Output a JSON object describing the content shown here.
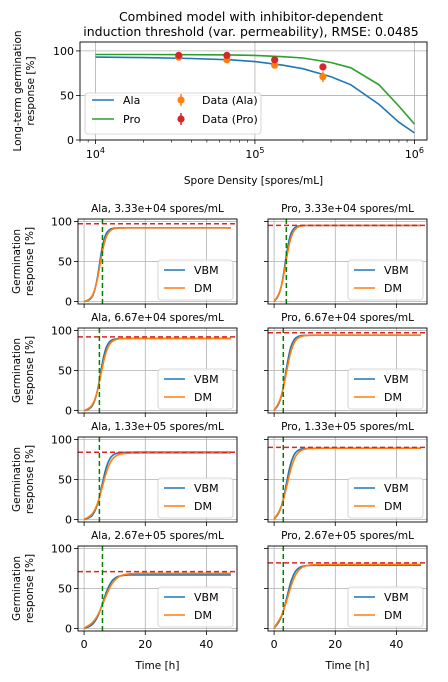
{
  "colors": {
    "ala": "#1f77b4",
    "pro": "#2ca02c",
    "data_ala": "#ff7f0e",
    "data_pro": "#d62728",
    "vbm": "#1f77b4",
    "dm": "#ff7f0e",
    "asymptote": "#d62728",
    "threshold": "#008000",
    "grid": "#b0b0b0"
  },
  "chart_data": [
    {
      "type": "line",
      "title_line1": "Combined model with inhibitor-dependent",
      "title_line2": "induction threshold (var. permeability), RMSE: 0.0485",
      "xlabel": "Spore Density [spores/mL]",
      "ylabel_line1": "Long-term germination",
      "ylabel_line2": "response [%]",
      "xscale": "log",
      "xlim": [
        8000,
        1200000
      ],
      "ylim": [
        0,
        110
      ],
      "xtick_labels": [
        "10^4",
        "10^5",
        "10^6"
      ],
      "xtick_values": [
        10000,
        100000,
        1000000
      ],
      "yticks": [
        0,
        50,
        100
      ],
      "grid": true,
      "legend_position": "lower-left",
      "series": [
        {
          "name": "Ala",
          "kind": "line",
          "x": [
            10000,
            20000,
            40000,
            70000,
            100000,
            150000,
            200000,
            300000,
            400000,
            600000,
            800000,
            1000000
          ],
          "y": [
            93,
            92.5,
            91.5,
            90,
            88,
            84,
            80,
            71,
            62,
            40,
            20,
            8
          ]
        },
        {
          "name": "Pro",
          "kind": "line",
          "x": [
            10000,
            20000,
            40000,
            70000,
            100000,
            150000,
            200000,
            300000,
            400000,
            600000,
            800000,
            1000000
          ],
          "y": [
            96,
            96,
            95.8,
            95.5,
            95,
            93.5,
            92,
            87,
            81,
            62,
            38,
            18
          ]
        },
        {
          "name": "Data (Ala)",
          "kind": "errorbar",
          "x": [
            33300,
            66700,
            133000,
            267000
          ],
          "y": [
            93,
            90,
            84,
            71
          ],
          "err": [
            2,
            2,
            3,
            6
          ]
        },
        {
          "name": "Data (Pro)",
          "kind": "errorbar",
          "x": [
            33300,
            66700,
            133000,
            267000
          ],
          "y": [
            95,
            95,
            90,
            82
          ],
          "err": [
            2,
            2,
            2,
            4
          ]
        }
      ]
    },
    {
      "type": "line",
      "title": "Ala, 3.33e+04 spores/mL",
      "xlim": [
        -2,
        50
      ],
      "ylim": [
        -3,
        103
      ],
      "yticks": [
        0,
        50,
        100
      ],
      "xticks": [
        0,
        20,
        40
      ],
      "ylabel_line1": "Germination",
      "ylabel_line2": "response [%]",
      "asymptote": 97,
      "threshold_time": 6,
      "vbm_params": {
        "final": 92,
        "half_time": 5.0,
        "rate": 1.1
      },
      "dm_params": {
        "final": 92,
        "half_time": 5.2,
        "rate": 0.95
      },
      "legend_position": "lower-right",
      "series": [
        {
          "name": "VBM"
        },
        {
          "name": "DM"
        }
      ]
    },
    {
      "type": "line",
      "title": "Pro, 3.33e+04 spores/mL",
      "xlim": [
        -2,
        50
      ],
      "ylim": [
        -3,
        103
      ],
      "yticks": [
        0,
        50,
        100
      ],
      "xticks": [
        0,
        20,
        40
      ],
      "asymptote": 95,
      "threshold_time": 4,
      "vbm_params": {
        "final": 95,
        "half_time": 3.6,
        "rate": 1.1
      },
      "dm_params": {
        "final": 95,
        "half_time": 3.8,
        "rate": 0.95
      },
      "legend_position": "lower-right",
      "series": [
        {
          "name": "VBM"
        },
        {
          "name": "DM"
        }
      ]
    },
    {
      "type": "line",
      "title": "Ala, 6.67e+04 spores/mL",
      "xlim": [
        -2,
        50
      ],
      "ylim": [
        -3,
        103
      ],
      "yticks": [
        0,
        50,
        100
      ],
      "xticks": [
        0,
        20,
        40
      ],
      "ylabel_line1": "Germination",
      "ylabel_line2": "response [%]",
      "asymptote": 92,
      "threshold_time": 5,
      "vbm_params": {
        "final": 90,
        "half_time": 5.3,
        "rate": 1.0
      },
      "dm_params": {
        "final": 90,
        "half_time": 5.5,
        "rate": 0.85
      },
      "legend_position": "lower-right",
      "series": [
        {
          "name": "VBM"
        },
        {
          "name": "DM"
        }
      ]
    },
    {
      "type": "line",
      "title": "Pro, 6.67e+04 spores/mL",
      "xlim": [
        -2,
        50
      ],
      "ylim": [
        -3,
        103
      ],
      "yticks": [
        0,
        50,
        100
      ],
      "xticks": [
        0,
        20,
        40
      ],
      "asymptote": 97,
      "threshold_time": 3,
      "vbm_params": {
        "final": 94,
        "half_time": 3.8,
        "rate": 1.0
      },
      "dm_params": {
        "final": 94,
        "half_time": 4.0,
        "rate": 0.85
      },
      "legend_position": "lower-right",
      "series": [
        {
          "name": "VBM"
        },
        {
          "name": "DM"
        }
      ]
    },
    {
      "type": "line",
      "title": "Ala, 1.33e+05 spores/mL",
      "xlim": [
        -2,
        50
      ],
      "ylim": [
        -3,
        103
      ],
      "yticks": [
        0,
        50,
        100
      ],
      "xticks": [
        0,
        20,
        40
      ],
      "ylabel_line1": "Germination",
      "ylabel_line2": "response [%]",
      "asymptote": 84,
      "threshold_time": 5,
      "vbm_params": {
        "final": 84,
        "half_time": 5.8,
        "rate": 0.85
      },
      "dm_params": {
        "final": 83,
        "half_time": 6.0,
        "rate": 0.7
      },
      "legend_position": "lower-right",
      "series": [
        {
          "name": "VBM"
        },
        {
          "name": "DM"
        }
      ]
    },
    {
      "type": "line",
      "title": "Pro, 1.33e+05 spores/mL",
      "xlim": [
        -2,
        50
      ],
      "ylim": [
        -3,
        103
      ],
      "yticks": [
        0,
        50,
        100
      ],
      "xticks": [
        0,
        20,
        40
      ],
      "asymptote": 90,
      "threshold_time": 3,
      "vbm_params": {
        "final": 89,
        "half_time": 4.0,
        "rate": 0.9
      },
      "dm_params": {
        "final": 89,
        "half_time": 4.3,
        "rate": 0.75
      },
      "legend_position": "lower-right",
      "series": [
        {
          "name": "VBM"
        },
        {
          "name": "DM"
        }
      ]
    },
    {
      "type": "line",
      "title": "Ala, 2.67e+05 spores/mL",
      "xlim": [
        -2,
        50
      ],
      "ylim": [
        -3,
        103
      ],
      "yticks": [
        0,
        50,
        100
      ],
      "xticks": [
        0,
        20,
        40
      ],
      "ylabel_line1": "Germination",
      "ylabel_line2": "response [%]",
      "xlabel": "Time [h]",
      "asymptote": 71,
      "threshold_time": 6,
      "vbm_params": {
        "final": 67,
        "half_time": 6.2,
        "rate": 0.7
      },
      "dm_params": {
        "final": 69,
        "half_time": 6.5,
        "rate": 0.55
      },
      "legend_position": "lower-right",
      "series": [
        {
          "name": "VBM"
        },
        {
          "name": "DM"
        }
      ]
    },
    {
      "type": "line",
      "title": "Pro, 2.67e+05 spores/mL",
      "xlim": [
        -2,
        50
      ],
      "ylim": [
        -3,
        103
      ],
      "yticks": [
        0,
        50,
        100
      ],
      "xticks": [
        0,
        20,
        40
      ],
      "xlabel": "Time [h]",
      "asymptote": 82,
      "threshold_time": 3,
      "vbm_params": {
        "final": 79,
        "half_time": 4.2,
        "rate": 0.8
      },
      "dm_params": {
        "final": 80,
        "half_time": 4.5,
        "rate": 0.65
      },
      "legend_position": "lower-right",
      "series": [
        {
          "name": "VBM"
        },
        {
          "name": "DM"
        }
      ]
    }
  ]
}
